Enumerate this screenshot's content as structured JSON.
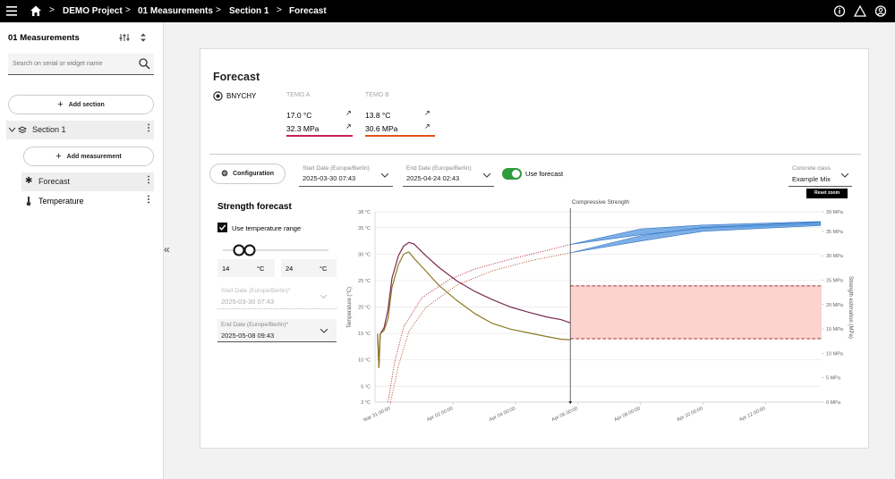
{
  "header": {
    "breadcrumbs": [
      "DEMO Project",
      "01 Measurements",
      "Section 1",
      "Forecast"
    ]
  },
  "sidebar": {
    "title": "01 Measurements",
    "search_placeholder": "Search on serial or widget name",
    "add_section": "Add section",
    "section": "Section 1",
    "add_measurement": "Add measurement",
    "items": [
      "Forecast",
      "Temperature"
    ]
  },
  "card": {
    "title": "Forecast",
    "device": "BNYCHY",
    "sensors": [
      {
        "name": "TEMO A",
        "temperature": "17.0 °C",
        "strength": "32.3 MPa",
        "color": "#c8205a"
      },
      {
        "name": "TEMO B",
        "temperature": "13.8 °C",
        "strength": "30.6 MPa",
        "color": "#e2531d"
      }
    ],
    "configuration": "Configuration",
    "start_date": {
      "label": "Start Date (Europe/Berlin)",
      "value": "2025-03-30 07:43"
    },
    "end_date": {
      "label": "End Date (Europe/Berlin)",
      "value": "2025-04-24 02:43"
    },
    "use_forecast": "Use forecast",
    "concrete_class": {
      "label": "Concrete class",
      "value": "Example Mix"
    },
    "reset_zoom": "Reset zoom",
    "strength_forecast": {
      "title": "Strength forecast",
      "use_temperature_range": "Use temperature range",
      "min": 14,
      "max": 24,
      "unit": "°C",
      "start_date": {
        "label": "Start Date (Europe/Berlin)*",
        "value": "2025-03-30 07:43"
      },
      "end_date": {
        "label": "End Date (Europe/Berlin)*",
        "value": "2025-05-08 09:43"
      }
    }
  },
  "chart_data": {
    "type": "line",
    "title": "Compressive Strength",
    "ylabel": "Temperature (°C)",
    "y2label": "Strength estimation (MPa)",
    "xlim": [
      "Mar 30 12:00",
      "Apr 13 19:00"
    ],
    "xticks": [
      "Mar 31 00:00",
      "Apr 02 00:00",
      "Apr 04 00:00",
      "Apr 06 00:00",
      "Apr 08 00:00",
      "Apr 10 00:00",
      "Apr 12 00:00"
    ],
    "ylim": [
      2,
      38
    ],
    "yticks": [
      {
        "value": 2,
        "label": "2 °C"
      },
      {
        "value": 5,
        "label": "5 °C"
      },
      {
        "value": 10,
        "label": "10 °C"
      },
      {
        "value": 15,
        "label": "15 °C"
      },
      {
        "value": 20,
        "label": "20 °C"
      },
      {
        "value": 25,
        "label": "25 °C"
      },
      {
        "value": 30,
        "label": "30 °C"
      },
      {
        "value": 35,
        "label": "35 °C"
      },
      {
        "value": 38,
        "label": "38 °C"
      }
    ],
    "y2lim": [
      0,
      39
    ],
    "y2ticks": [
      {
        "value": 0,
        "label": "0 MPa"
      },
      {
        "value": 5,
        "label": "5 MPa"
      },
      {
        "value": 10,
        "label": "10 MPa"
      },
      {
        "value": 15,
        "label": "15 MPa"
      },
      {
        "value": 20,
        "label": "20 MPa"
      },
      {
        "value": 25,
        "label": "25 MPa"
      },
      {
        "value": 30,
        "label": "30 MPa"
      },
      {
        "value": 35,
        "label": "35 MPa"
      },
      {
        "value": 39,
        "label": "39 MPa"
      }
    ],
    "grid": true,
    "range_color": "#fcd3cf",
    "series": [
      {
        "color": "#7d2a52",
        "axis": "y",
        "x": [
          "Mar 30 14:00",
          "Mar 30 15:00",
          "Mar 30 16:00",
          "Mar 30 19:00",
          "Mar 30 22:00",
          "Mar 31 01:00",
          "Mar 31 06:00",
          "Mar 31 10:00",
          "Mar 31 14:00",
          "Mar 31 18:00",
          "Apr 01 03:00",
          "Apr 01 13:00",
          "Apr 02 03:00",
          "Apr 02 17:00",
          "Apr 03 06:00",
          "Apr 03 20:00",
          "Apr 04 10:00",
          "Apr 05 00:00",
          "Apr 05 11:00",
          "Apr 05 18:00"
        ],
        "values": [
          14.9,
          8.5,
          14.9,
          16.1,
          19.5,
          25.4,
          29.7,
          31.5,
          32.2,
          31.9,
          29.7,
          27.5,
          24.9,
          22.9,
          21.4,
          20.0,
          19.0,
          18.1,
          17.6,
          17.0
        ]
      },
      {
        "color": "#8b7a22",
        "axis": "y",
        "x": [
          "Mar 30 14:00",
          "Mar 30 15:00",
          "Mar 30 16:00",
          "Mar 30 19:00",
          "Mar 30 22:00",
          "Mar 31 01:00",
          "Mar 31 06:00",
          "Mar 31 10:00",
          "Mar 31 14:00",
          "Mar 31 18:00",
          "Apr 01 03:00",
          "Apr 01 13:00",
          "Apr 02 03:00",
          "Apr 02 17:00",
          "Apr 03 06:00",
          "Apr 03 20:00",
          "Apr 04 10:00",
          "Apr 05 00:00",
          "Apr 05 11:00",
          "Apr 05 18:00"
        ],
        "values": [
          14.9,
          8.5,
          14.9,
          15.6,
          17.8,
          23.7,
          28.0,
          30.0,
          30.4,
          29.2,
          26.8,
          24.1,
          21.2,
          18.7,
          16.9,
          15.8,
          15.1,
          14.4,
          13.9,
          13.8
        ]
      },
      {
        "color": "#b0233f",
        "axis": "y2",
        "style": "dotted",
        "x": [
          "Mar 30 22:00",
          "Mar 31 03:00",
          "Mar 31 10:00",
          "Apr 01 00:00",
          "Apr 01 21:00",
          "Apr 02 17:00",
          "Apr 03 20:00",
          "Apr 05 00:00",
          "Apr 05 18:00"
        ],
        "values": [
          0,
          8.1,
          15.4,
          21.4,
          25.1,
          27.3,
          29.3,
          31.1,
          32.3
        ]
      },
      {
        "color": "#b4502a",
        "axis": "y2",
        "style": "dotted",
        "x": [
          "Mar 31 00:00",
          "Mar 31 06:00",
          "Mar 31 14:00",
          "Apr 01 03:00",
          "Apr 02 03:00",
          "Apr 03 06:00",
          "Apr 04 10:00",
          "Apr 05 18:00"
        ],
        "values": [
          0,
          7.5,
          14.5,
          19.4,
          24.0,
          26.9,
          28.9,
          30.6
        ]
      },
      {
        "kind": "band",
        "color": "#5b9be0",
        "axis": "y2",
        "x": [
          "Apr 05 18:00",
          "Apr 08 00:00",
          "Apr 10 00:00",
          "Apr 13 18:00"
        ],
        "lower": [
          32.3,
          34.3,
          35.6,
          36.4
        ],
        "upper": [
          32.3,
          35.5,
          36.3,
          37.0
        ]
      },
      {
        "kind": "band",
        "color": "#5b9be0",
        "axis": "y2",
        "x": [
          "Apr 05 18:00",
          "Apr 08 00:00",
          "Apr 10 00:00",
          "Apr 13 18:00"
        ],
        "lower": [
          30.6,
          33.0,
          35.0,
          36.2
        ],
        "upper": [
          30.6,
          34.1,
          35.8,
          36.9
        ]
      }
    ]
  }
}
